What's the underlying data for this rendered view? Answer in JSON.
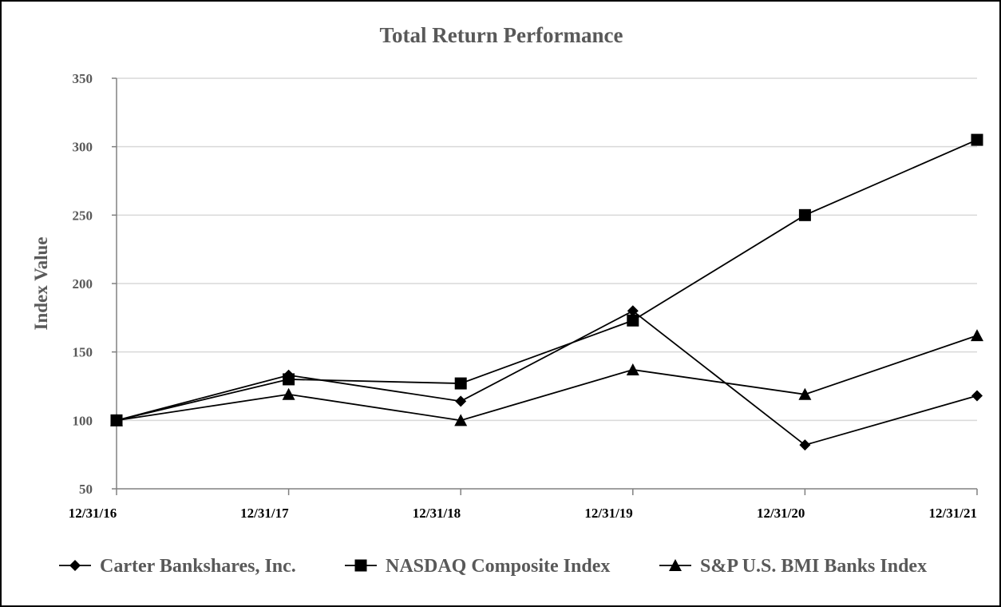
{
  "chart_data": {
    "type": "line",
    "title": "Total Return Performance",
    "xlabel": "",
    "ylabel": "Index Value",
    "categories": [
      "12/31/16",
      "12/31/17",
      "12/31/18",
      "12/31/19",
      "12/31/20",
      "12/31/21"
    ],
    "ylim": [
      50,
      350
    ],
    "yticks": [
      50,
      100,
      150,
      200,
      250,
      300,
      350
    ],
    "grid": true,
    "legend_position": "bottom",
    "series": [
      {
        "name": "Carter Bankshares, Inc.",
        "marker": "diamond",
        "values": [
          100,
          133,
          114,
          180,
          82,
          118
        ]
      },
      {
        "name": "NASDAQ Composite Index",
        "marker": "square",
        "values": [
          100,
          130,
          127,
          173,
          250,
          305
        ]
      },
      {
        "name": "S&P U.S. BMI Banks Index",
        "marker": "triangle",
        "values": [
          100,
          119,
          100,
          137,
          119,
          162
        ]
      }
    ],
    "colors": {
      "line": "#000000",
      "grid": "#d9d9d9",
      "axis": "#808080",
      "text": "#595959"
    }
  }
}
